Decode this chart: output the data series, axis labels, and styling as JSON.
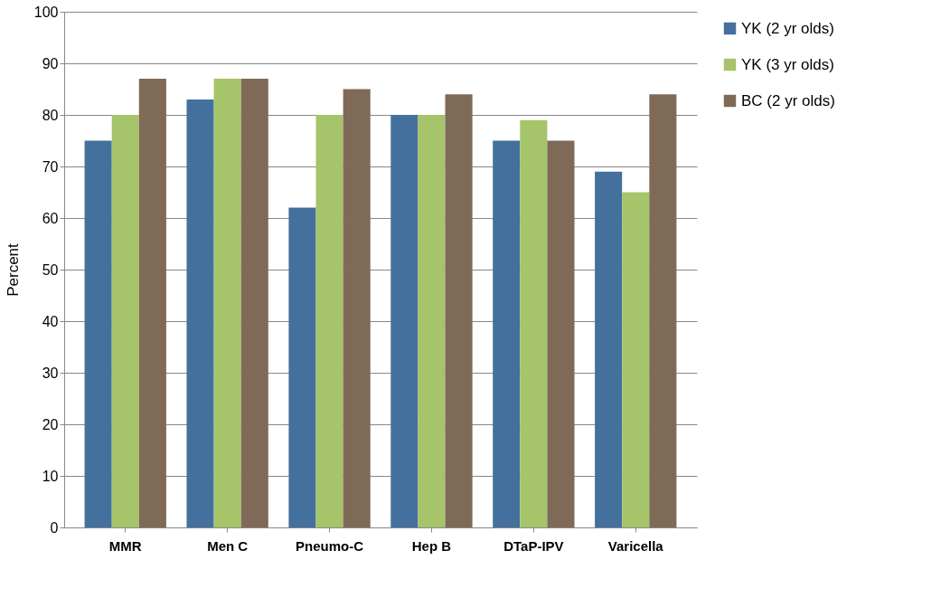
{
  "chart_data": {
    "type": "bar",
    "ylabel": "Percent",
    "categories": [
      "MMR",
      "Men C",
      "Pneumo-C",
      "Hep B",
      "DTaP-IPV",
      "Varicella"
    ],
    "series": [
      {
        "name": "YK (2 yr olds)",
        "color": "#44709d",
        "values": [
          75,
          83,
          62,
          80,
          75,
          69
        ]
      },
      {
        "name": "YK (3 yr olds)",
        "color": "#a6c46a",
        "values": [
          80,
          87,
          80,
          80,
          79,
          65
        ]
      },
      {
        "name": "BC (2 yr olds)",
        "color": "#7f6a57",
        "values": [
          87,
          87,
          85,
          84,
          75,
          84
        ]
      }
    ],
    "ylim": [
      0,
      100
    ],
    "yticks": [
      0,
      10,
      20,
      30,
      40,
      50,
      60,
      70,
      80,
      90,
      100
    ],
    "grid": "y",
    "legend": "right"
  }
}
